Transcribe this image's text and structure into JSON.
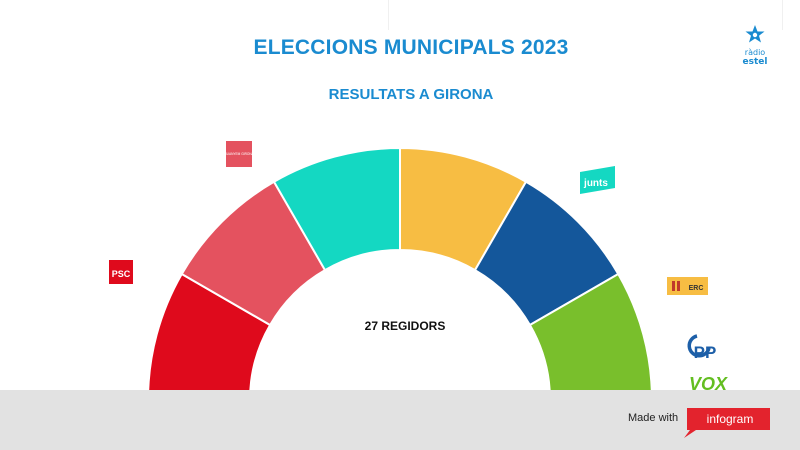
{
  "header": {
    "title": "ELECCIONS MUNICIPALS 2023",
    "subtitle": "RESULTATS A GIRONA"
  },
  "brand": {
    "line1": "ràdio",
    "line2": "estel"
  },
  "footer": {
    "made_with": "Made with",
    "tool": "infogram"
  },
  "chart_data": {
    "type": "parliament-semicircle",
    "center_label": "27 REGIDORS",
    "total_seats": 27,
    "segments": [
      {
        "party": "PSC",
        "color": "#df0a1c"
      },
      {
        "party": "GUANYEM GIRONA",
        "color": "#e4525f"
      },
      {
        "party": "",
        "color": "#14d8c2"
      },
      {
        "party": "",
        "color": "#f7bd43"
      },
      {
        "party": "junts",
        "color": "#14579b"
      },
      {
        "party": "ERC",
        "color": "#79bf2c"
      }
    ],
    "side_labels": [
      "PSC",
      "GUANYEM GIRONA",
      "junts",
      "ERC",
      "PP",
      "VOX"
    ]
  },
  "colors": {
    "accent": "#1a8bd0",
    "footer_bg": "#e2e2e2",
    "infogram_red": "#e3232d"
  }
}
